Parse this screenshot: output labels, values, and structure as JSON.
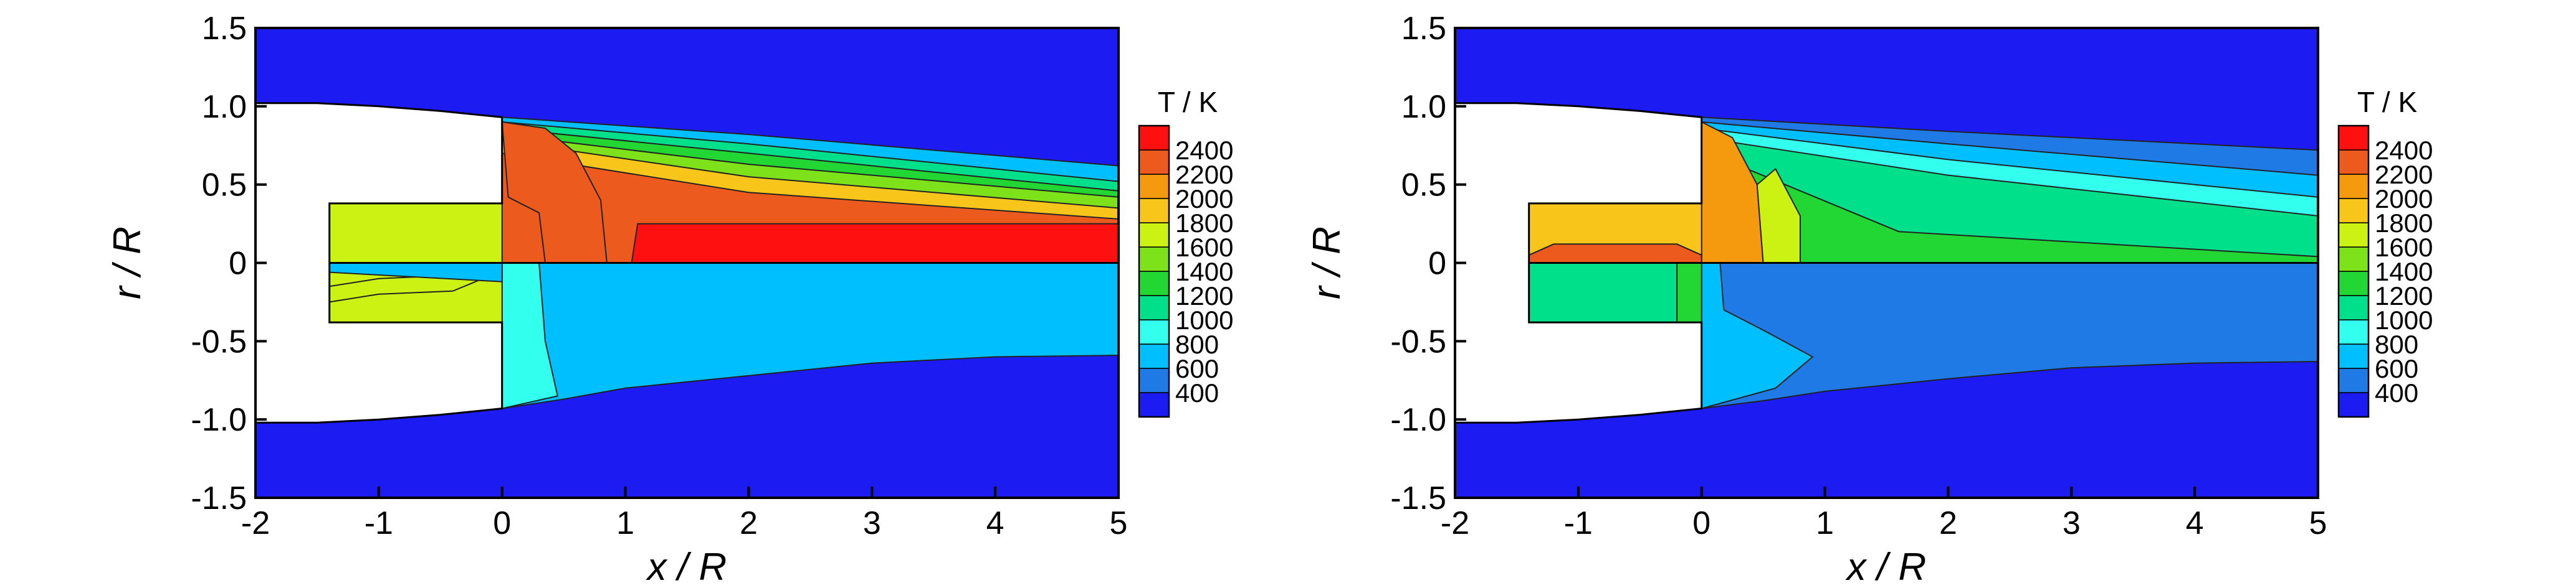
{
  "chart_data": [
    {
      "type": "contour",
      "title": "",
      "xlabel": "x / R",
      "ylabel": "r / R",
      "xlim": [
        -2,
        5
      ],
      "ylim": [
        -1.5,
        1.5
      ],
      "x_ticks": [
        -2,
        -1,
        0,
        1,
        2,
        3,
        4,
        5
      ],
      "y_ticks": [
        -1.5,
        -1.0,
        -0.5,
        0,
        0.5,
        1.0,
        1.5
      ],
      "y_tick_labels": [
        "-1.5",
        "-1.0",
        "-0.5",
        "0",
        "0.5",
        "1.0",
        "1.5"
      ],
      "grid": false,
      "colorbar": {
        "title": "T / K",
        "levels": [
          400,
          600,
          800,
          1000,
          1200,
          1400,
          1600,
          1800,
          2000,
          2200,
          2400
        ],
        "colors": [
          "#1b1bf2",
          "#1f7ae6",
          "#00bfff",
          "#33ffee",
          "#00e08a",
          "#22d633",
          "#7ee21a",
          "#ccf214",
          "#f8c61a",
          "#f59a0f",
          "#ec5a1e",
          "#ff1010"
        ],
        "placement": "right"
      },
      "upper_half": {
        "freestream_temperature_K": 400,
        "exit_plane_x": 0,
        "inner_nozzle_lip_r": 0.38,
        "near_axis_peak_temperature_K": 2400,
        "downstream_temperature_band_K": [
          1400,
          2400
        ]
      },
      "lower_half": {
        "freestream_temperature_K": 400,
        "jet_temperature_K": 800,
        "near_exit_temperature_K": 1000
      }
    },
    {
      "type": "contour",
      "title": "",
      "xlabel": "x / R",
      "ylabel": "r / R",
      "xlim": [
        -2,
        5
      ],
      "ylim": [
        -1.5,
        1.5
      ],
      "x_ticks": [
        -2,
        -1,
        0,
        1,
        2,
        3,
        4,
        5
      ],
      "y_ticks": [
        -1.5,
        -1.0,
        -0.5,
        0,
        0.5,
        1.0,
        1.5
      ],
      "y_tick_labels": [
        "-1.5",
        "-1.0",
        "-0.5",
        "0",
        "0.5",
        "1.0",
        "1.5"
      ],
      "grid": false,
      "colorbar": {
        "title": "T / K",
        "levels": [
          400,
          600,
          800,
          1000,
          1200,
          1400,
          1600,
          1800,
          2000,
          2200,
          2400
        ],
        "colors": [
          "#1b1bf2",
          "#1f7ae6",
          "#00bfff",
          "#33ffee",
          "#00e08a",
          "#22d633",
          "#7ee21a",
          "#ccf214",
          "#f8c61a",
          "#f59a0f",
          "#ec5a1e",
          "#ff1010"
        ],
        "placement": "right"
      },
      "upper_half": {
        "freestream_temperature_K": 400,
        "exit_plane_x": 0,
        "inner_nozzle_lip_r": 0.38,
        "near_exit_peak_temperature_K": 2200,
        "downstream_temperature_band_K": [
          800,
          1600
        ]
      },
      "lower_half": {
        "freestream_temperature_K": 400,
        "jet_temperature_K": 600,
        "near_exit_temperature_K": 800
      }
    }
  ]
}
